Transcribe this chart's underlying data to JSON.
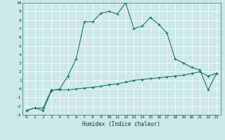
{
  "xlabel": "Humidex (Indice chaleur)",
  "bg_color": "#cce8e8",
  "grid_color": "#ffffff",
  "line_color": "#1a7a6a",
  "xlim": [
    -0.5,
    23.5
  ],
  "ylim": [
    -3,
    10
  ],
  "xticks": [
    0,
    1,
    2,
    3,
    4,
    5,
    6,
    7,
    8,
    9,
    10,
    11,
    12,
    13,
    14,
    15,
    16,
    17,
    18,
    19,
    20,
    21,
    22,
    23
  ],
  "yticks": [
    -3,
    -2,
    -1,
    0,
    1,
    2,
    3,
    4,
    5,
    6,
    7,
    8,
    9,
    10
  ],
  "line1_x": [
    0,
    1,
    2,
    3,
    4,
    5,
    6,
    7,
    8,
    9,
    10,
    11,
    12,
    13,
    14,
    15,
    16,
    17,
    18,
    19,
    20,
    21,
    22,
    23
  ],
  "line1_y": [
    -2.5,
    -2.2,
    -2.5,
    -0.2,
    0.0,
    1.5,
    3.5,
    7.8,
    7.8,
    8.8,
    9.0,
    8.7,
    10.0,
    7.0,
    7.3,
    8.3,
    7.5,
    6.5,
    3.5,
    3.0,
    2.5,
    2.2,
    -0.1,
    1.8
  ],
  "line2_x": [
    0,
    1,
    2,
    3,
    4,
    5,
    6,
    7,
    8,
    9,
    10,
    11,
    12,
    13,
    14,
    15,
    16,
    17,
    18,
    19,
    20,
    21,
    22,
    23
  ],
  "line2_y": [
    -2.5,
    -2.2,
    -2.2,
    -0.1,
    -0.1,
    -0.1,
    0.0,
    0.1,
    0.2,
    0.3,
    0.5,
    0.6,
    0.8,
    1.0,
    1.1,
    1.2,
    1.3,
    1.4,
    1.5,
    1.6,
    1.8,
    2.0,
    1.5,
    1.8
  ]
}
